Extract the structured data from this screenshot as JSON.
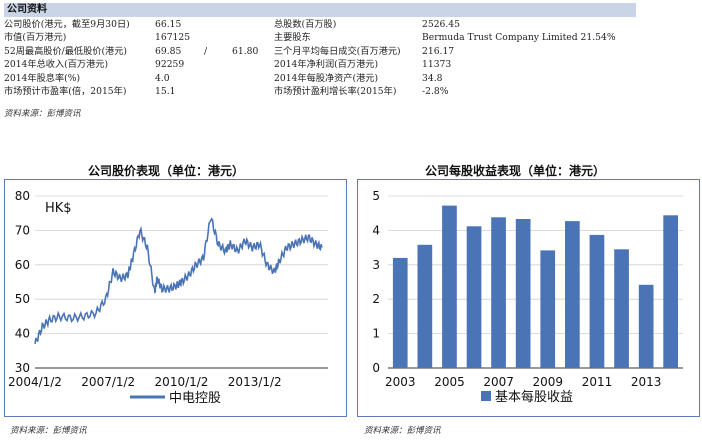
{
  "section": {
    "title": "公司资料",
    "source": "资料来源：彭博资讯"
  },
  "rows": [
    {
      "label": "公司股价(港元，截至9月30日)",
      "value": "66.15",
      "label2": "总股数(百万股)",
      "value2": "2526.45"
    },
    {
      "label": "市值(百万港元)",
      "value": "167125",
      "label2": "主要股东",
      "value2": "Bermuda Trust Company Limited 21.54%"
    },
    {
      "label": "52周最高股价/最低股价(港元)",
      "value": "69.85",
      "sep": "/",
      "value_b": "61.80",
      "label2": "三个月平均每日成交(百万港元)",
      "value2": "216.17"
    },
    {
      "label": "2014年总收入(百万港元)",
      "value": "92259",
      "label2": "2014年净利润(百万港元)",
      "value2": "11373"
    },
    {
      "label": "2014年股息率(%)",
      "value": "4.0",
      "label2": "2014年每股净资产(港元)",
      "value2": "34.8"
    },
    {
      "label": "市场预计市盈率(倍，2015年)",
      "value": "15.1",
      "label2": "市场预计盈利增长率(2015年)",
      "value2": "-2.8%"
    }
  ],
  "chart_data": [
    {
      "type": "line",
      "title": "公司股价表现（单位：港元）",
      "annotation": "HK$",
      "x_ticks": [
        "2004/1/2",
        "2007/1/2",
        "2010/1/2",
        "2013/1/2"
      ],
      "ylim": [
        30,
        80
      ],
      "y_ticks": [
        30,
        40,
        50,
        60,
        70,
        80
      ],
      "series": [
        {
          "name": "中电控股",
          "color": "#4a74b5",
          "x": [
            2004.0,
            2004.3,
            2004.6,
            2005.0,
            2005.5,
            2006.0,
            2006.5,
            2006.9,
            2007.2,
            2007.5,
            2007.8,
            2008.0,
            2008.3,
            2008.6,
            2008.9,
            2009.0,
            2009.2,
            2009.5,
            2009.8,
            2010.0,
            2010.3,
            2010.6,
            2010.9,
            2011.2,
            2011.5,
            2011.8,
            2012.0,
            2012.3,
            2012.6,
            2012.9,
            2013.2,
            2013.5,
            2013.8,
            2014.0,
            2014.3,
            2014.6,
            2014.9,
            2015.2,
            2015.5,
            2015.75
          ],
          "values": [
            37,
            42,
            44,
            45,
            44.5,
            45,
            46,
            50,
            58,
            56,
            57,
            62,
            70,
            65,
            52,
            56,
            53,
            53,
            54,
            55,
            57,
            60,
            62,
            74,
            66,
            64,
            66,
            64,
            67,
            65,
            66,
            60,
            58,
            61,
            65,
            66,
            67,
            68,
            66,
            65
          ]
        }
      ]
    },
    {
      "type": "bar",
      "title": "公司每股收益表现（单位：港元）",
      "categories": [
        "2003",
        "2004",
        "2005",
        "2006",
        "2007",
        "2008",
        "2009",
        "2010",
        "2011",
        "2012",
        "2013",
        "2014"
      ],
      "x_ticks": [
        "2003",
        "2005",
        "2007",
        "2009",
        "2011",
        "2013"
      ],
      "ylim": [
        0,
        5
      ],
      "y_ticks": [
        0,
        1,
        2,
        3,
        4,
        5
      ],
      "series": [
        {
          "name": "基本每股收益",
          "color": "#4a74b5",
          "values": [
            3.2,
            3.58,
            4.72,
            4.12,
            4.38,
            4.33,
            3.42,
            4.27,
            3.87,
            3.45,
            2.42,
            4.44
          ]
        }
      ]
    }
  ],
  "sources": {
    "left": "资料来源：彭博资讯",
    "right": "资料来源：彭博资讯"
  }
}
